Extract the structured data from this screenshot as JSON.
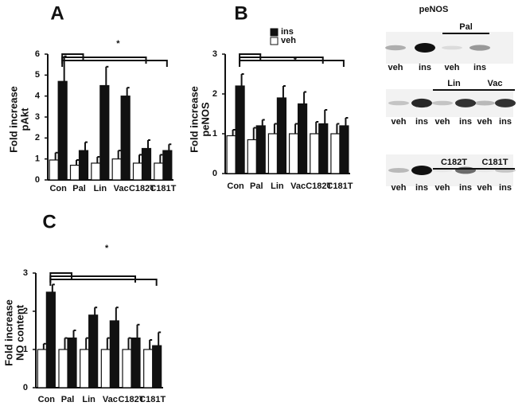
{
  "chart_data": [
    {
      "type": "bar",
      "panel": "A",
      "ylabel": [
        "Fold increase",
        "pAkt"
      ],
      "annotation": "*",
      "categories": [
        "Con",
        "Pal",
        "Lin",
        "Vac",
        "C182T",
        "C181T"
      ],
      "series": [
        {
          "name": "ins",
          "color": "#111111",
          "values": [
            4.7,
            1.4,
            4.5,
            4.0,
            1.5,
            1.4
          ],
          "errors": [
            1.2,
            0.4,
            0.9,
            0.4,
            0.4,
            0.3
          ]
        },
        {
          "name": "veh",
          "color": "#ffffff",
          "values": [
            0.95,
            0.7,
            0.8,
            1.0,
            0.8,
            0.8
          ],
          "errors": [
            0.35,
            0.25,
            0.3,
            0.4,
            0.4,
            0.4
          ]
        }
      ],
      "ylim": [
        0,
        6
      ],
      "yticks": [
        0,
        1,
        2,
        3,
        4,
        5,
        6
      ]
    },
    {
      "type": "bar",
      "panel": "B",
      "ylabel": [
        "Fold increase",
        "peNOS"
      ],
      "annotation": "*",
      "legend": "top",
      "categories": [
        "Con",
        "Pal",
        "Lin",
        "Vac",
        "C182T",
        "C181T"
      ],
      "series": [
        {
          "name": "ins",
          "color": "#111111",
          "values": [
            2.2,
            1.2,
            1.9,
            1.75,
            1.25,
            1.2
          ],
          "errors": [
            0.3,
            0.15,
            0.3,
            0.3,
            0.35,
            0.2
          ]
        },
        {
          "name": "veh",
          "color": "#ffffff",
          "values": [
            0.95,
            0.85,
            1.0,
            1.0,
            1.0,
            1.0
          ],
          "errors": [
            0.15,
            0.3,
            0.25,
            0.25,
            0.3,
            0.25
          ]
        }
      ],
      "ylim": [
        0,
        3
      ],
      "yticks": [
        0,
        1,
        2,
        3
      ]
    },
    {
      "type": "bar",
      "panel": "C",
      "ylabel": [
        "Fold increase",
        "NO content"
      ],
      "annotation": "*",
      "categories": [
        "Con",
        "Pal",
        "Lin",
        "Vac",
        "C182T",
        "C181T"
      ],
      "series": [
        {
          "name": "ins",
          "color": "#111111",
          "values": [
            2.5,
            1.3,
            1.9,
            1.75,
            1.3,
            1.1
          ],
          "errors": [
            0.2,
            0.2,
            0.2,
            0.35,
            0.35,
            0.35
          ]
        },
        {
          "name": "veh",
          "color": "#ffffff",
          "values": [
            1.0,
            1.0,
            1.0,
            1.0,
            1.0,
            1.0
          ],
          "errors": [
            0.15,
            0.3,
            0.3,
            0.3,
            0.3,
            0.25
          ]
        }
      ],
      "ylim": [
        0,
        3
      ],
      "yticks": [
        0,
        1,
        2,
        3
      ]
    }
  ],
  "blots": {
    "title": "peNOS",
    "rows": [
      {
        "lanes": [
          "veh",
          "ins",
          "veh",
          "ins"
        ],
        "groups": [
          "Pal"
        ]
      },
      {
        "lanes": [
          "veh",
          "ins",
          "veh",
          "ins",
          "veh",
          "ins"
        ],
        "groups": [
          "Lin",
          "Vac"
        ]
      },
      {
        "lanes": [
          "veh",
          "ins",
          "veh",
          "ins",
          "veh",
          "ins"
        ],
        "groups": [
          "C182T",
          "C181T"
        ]
      }
    ]
  }
}
